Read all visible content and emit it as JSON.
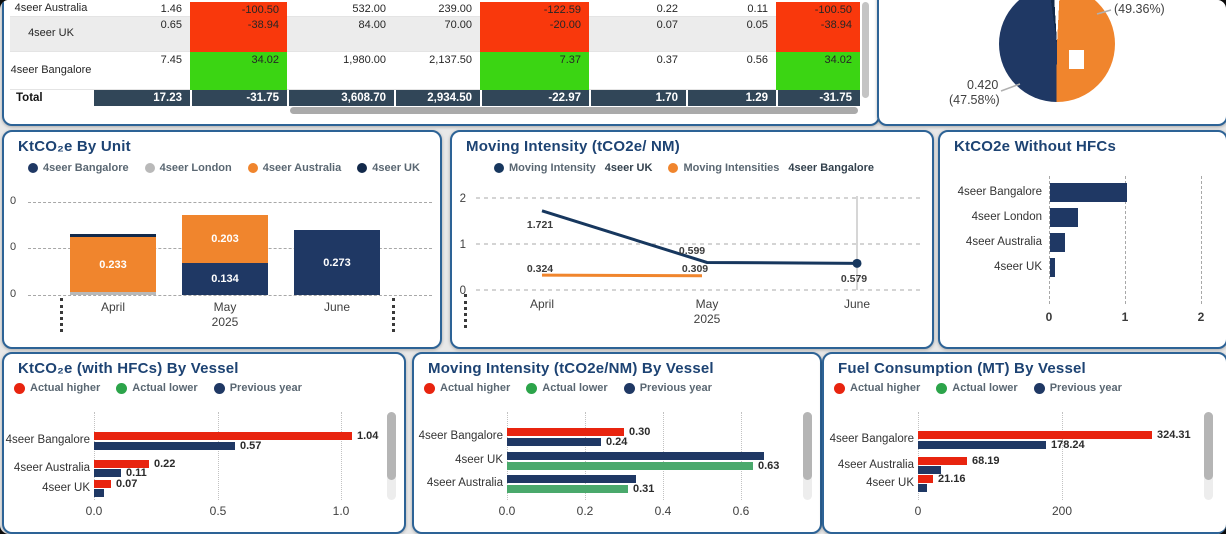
{
  "colors": {
    "navy": "#1f3864",
    "navy_dark": "#12294a",
    "line_navy": "#17375e",
    "orange": "#f0852d",
    "gray_series": "#b9b9b9",
    "red": "#e8240f",
    "legend_green": "#2ca44a",
    "green": "#4aa96c",
    "table_red": "#f9380c",
    "table_green": "#3bd513",
    "title": "#1d4373",
    "card_border": "#2d6396",
    "total_row_bg": "#314658"
  },
  "chart_data": [
    {
      "id": "emissions-summary-table",
      "type": "table",
      "rows": [
        {
          "label": "4seer Australia",
          "cells": [
            {
              "v": "1.46"
            },
            {
              "v": "-100.50",
              "c": "neg"
            },
            {
              "v": "532.00"
            },
            {
              "v": "239.00"
            },
            {
              "v": "-122.59",
              "c": "neg"
            },
            {
              "v": "0.22"
            },
            {
              "v": "0.11"
            },
            {
              "v": "-100.50",
              "c": "neg"
            }
          ]
        },
        {
          "label": "4seer UK",
          "cells": [
            {
              "v": "0.65"
            },
            {
              "v": "-38.94",
              "c": "neg"
            },
            {
              "v": "84.00"
            },
            {
              "v": "70.00"
            },
            {
              "v": "-20.00",
              "c": "neg"
            },
            {
              "v": "0.07"
            },
            {
              "v": "0.05"
            },
            {
              "v": "-38.94",
              "c": "neg"
            }
          ]
        },
        {
          "label": "4seer Bangalore",
          "cells": [
            {
              "v": "7.45"
            },
            {
              "v": "34.02",
              "c": "pos"
            },
            {
              "v": "1,980.00"
            },
            {
              "v": "2,137.50"
            },
            {
              "v": "7.37",
              "c": "pos"
            },
            {
              "v": "0.37"
            },
            {
              "v": "0.56"
            },
            {
              "v": "34.02",
              "c": "pos"
            }
          ]
        },
        {
          "label": "Total",
          "total": true,
          "cells": [
            {
              "v": "17.23"
            },
            {
              "v": "-31.75"
            },
            {
              "v": "3,608.70"
            },
            {
              "v": "2,934.50"
            },
            {
              "v": "-22.97"
            },
            {
              "v": "1.70"
            },
            {
              "v": "1.29"
            },
            {
              "v": "-31.75"
            }
          ]
        }
      ]
    },
    {
      "id": "emissions-share-pie",
      "type": "pie",
      "callout_top": "(49.36%)",
      "callout_bottom_value": "0.420",
      "callout_bottom_pct": "(47.58%)",
      "slices": [
        {
          "label": "(49.36%)",
          "value": 49.36,
          "color_key": "orange"
        },
        {
          "label": "0.420 (47.58%)",
          "value": 47.58,
          "color_key": "navy"
        },
        {
          "label": "",
          "value": 3.06,
          "color_key": "navy_dark"
        }
      ]
    },
    {
      "id": "ktco2e-by-unit",
      "type": "bar",
      "subtype": "stacked-column",
      "title": "KtCO₂e By Unit",
      "legend": [
        {
          "label": "4seer Bangalore",
          "color_key": "navy"
        },
        {
          "label": "4seer London",
          "color_key": "gray_series"
        },
        {
          "label": "4seer Australia",
          "color_key": "orange"
        },
        {
          "label": "4seer UK",
          "color_key": "navy_dark"
        }
      ],
      "categories": [
        "April",
        "May",
        "June"
      ],
      "x_sub_label": "2025",
      "y_tick_labels": [
        "0",
        "0",
        "0"
      ],
      "stacks": [
        {
          "category": "April",
          "segments_bottom_up": [
            {
              "series": "4seer London",
              "value": 0.012,
              "label": "",
              "color_key": "gray_series"
            },
            {
              "series": "4seer Australia",
              "value": 0.233,
              "label": "0.233",
              "color_key": "orange"
            },
            {
              "series": "4seer UK",
              "value": 0.014,
              "label": "",
              "color_key": "navy_dark"
            }
          ]
        },
        {
          "category": "May",
          "segments_bottom_up": [
            {
              "series": "4seer Bangalore",
              "value": 0.134,
              "label": "0.134",
              "color_key": "navy"
            },
            {
              "series": "4seer Australia",
              "value": 0.203,
              "label": "0.203",
              "color_key": "orange"
            }
          ]
        },
        {
          "category": "June",
          "segments_bottom_up": [
            {
              "series": "4seer Bangalore",
              "value": 0.273,
              "label": "0.273",
              "color_key": "navy"
            }
          ]
        }
      ]
    },
    {
      "id": "moving-intensity",
      "type": "line",
      "title": "Moving Intensity (tCO2e/ NM)",
      "legend": [
        {
          "label": "Moving Intensity",
          "bold": "4seer UK",
          "color_key": "line_navy"
        },
        {
          "label": "Moving Intensities",
          "bold": "4seer Bangalore",
          "color_key": "orange"
        }
      ],
      "x": [
        "April",
        "May",
        "June"
      ],
      "x_sub_label": "2025",
      "ylim": [
        0,
        2
      ],
      "y_tick_labels": [
        "2",
        "1",
        "0"
      ],
      "series": [
        {
          "name": "Moving Intensity 4seer UK",
          "color_key": "line_navy",
          "values": [
            1.721,
            0.599,
            0.579
          ],
          "labels": [
            "1.721",
            "0.599",
            "0.579"
          ]
        },
        {
          "name": "Moving Intensities 4seer Bangalore",
          "color_key": "orange",
          "values": [
            0.324,
            0.309,
            null
          ],
          "labels": [
            "0.324",
            "0.309",
            ""
          ]
        }
      ]
    },
    {
      "id": "ktco2e-without-hfcs",
      "type": "bar",
      "subtype": "horizontal",
      "title": "KtCO2e Without HFCs",
      "categories": [
        "4seer Bangalore",
        "4seer London",
        "4seer Australia",
        "4seer UK"
      ],
      "values": [
        1.01,
        0.37,
        0.2,
        0.07
      ],
      "xlim": [
        0,
        2
      ],
      "x_ticks": [
        "0",
        "1",
        "2"
      ]
    },
    {
      "id": "ktco2e-with-hfcs-by-vessel",
      "type": "bar",
      "subtype": "grouped-horizontal",
      "title": "KtCO₂e (with HFCs) By Vessel",
      "legend": [
        {
          "label": "Actual higher",
          "color_key": "red"
        },
        {
          "label": "Actual lower",
          "color_key": "legend_green"
        },
        {
          "label": "Previous year",
          "color_key": "navy"
        }
      ],
      "x_ticks": [
        "0.0",
        "0.5",
        "1.0"
      ],
      "groups": [
        {
          "category": "4seer Bangalore",
          "bars": [
            {
              "series": "Actual higher",
              "color_key": "red",
              "value": 1.04,
              "label": "1.04"
            },
            {
              "series": "Previous year",
              "color_key": "navy",
              "value": 0.57,
              "label": "0.57"
            }
          ]
        },
        {
          "category": "4seer Australia",
          "bars": [
            {
              "series": "Actual higher",
              "color_key": "red",
              "value": 0.22,
              "label": "0.22"
            },
            {
              "series": "Previous year",
              "color_key": "navy",
              "value": 0.11,
              "label": "0.11"
            }
          ]
        },
        {
          "category": "4seer UK",
          "bars": [
            {
              "series": "Actual higher",
              "color_key": "red",
              "value": 0.07,
              "label": "0.07"
            },
            {
              "series": "Previous year",
              "color_key": "navy",
              "value": 0.04,
              "label": ""
            }
          ]
        }
      ]
    },
    {
      "id": "moving-intensity-by-vessel",
      "type": "bar",
      "subtype": "grouped-horizontal",
      "title": "Moving Intensity (tCO2e/NM) By Vessel",
      "legend": [
        {
          "label": "Actual higher",
          "color_key": "red"
        },
        {
          "label": "Actual lower",
          "color_key": "legend_green"
        },
        {
          "label": "Previous year",
          "color_key": "navy"
        }
      ],
      "x_ticks": [
        "0.0",
        "0.2",
        "0.4",
        "0.6"
      ],
      "groups": [
        {
          "category": "4seer Bangalore",
          "bars": [
            {
              "series": "Actual higher",
              "color_key": "red",
              "value": 0.3,
              "label": "0.30"
            },
            {
              "series": "Previous year",
              "color_key": "navy",
              "value": 0.24,
              "label": "0.24"
            }
          ]
        },
        {
          "category": "4seer UK",
          "bars": [
            {
              "series": "Previous year",
              "color_key": "navy",
              "value": 0.66,
              "label": ""
            },
            {
              "series": "Actual lower",
              "color_key": "green",
              "value": 0.63,
              "label": "0.63"
            }
          ]
        },
        {
          "category": "4seer Australia",
          "bars": [
            {
              "series": "Previous year",
              "color_key": "navy",
              "value": 0.33,
              "label": ""
            },
            {
              "series": "Actual lower",
              "color_key": "green",
              "value": 0.31,
              "label": "0.31"
            }
          ]
        }
      ]
    },
    {
      "id": "fuel-consumption-by-vessel",
      "type": "bar",
      "subtype": "grouped-horizontal",
      "title": "Fuel Consumption (MT) By Vessel",
      "legend": [
        {
          "label": "Actual higher",
          "color_key": "red"
        },
        {
          "label": "Actual lower",
          "color_key": "legend_green"
        },
        {
          "label": "Previous year",
          "color_key": "navy"
        }
      ],
      "x_ticks": [
        "0",
        "200"
      ],
      "groups": [
        {
          "category": "4seer Bangalore",
          "bars": [
            {
              "series": "Actual higher",
              "color_key": "red",
              "value": 324.31,
              "label": "324.31"
            },
            {
              "series": "Previous year",
              "color_key": "navy",
              "value": 178.24,
              "label": "178.24"
            }
          ]
        },
        {
          "category": "4seer Australia",
          "bars": [
            {
              "series": "Actual higher",
              "color_key": "red",
              "value": 68.19,
              "label": "68.19"
            },
            {
              "series": "Previous year",
              "color_key": "navy",
              "value": 32,
              "label": ""
            }
          ]
        },
        {
          "category": "4seer UK",
          "bars": [
            {
              "series": "Actual higher",
              "color_key": "red",
              "value": 21.16,
              "label": "21.16"
            },
            {
              "series": "Previous year",
              "color_key": "navy",
              "value": 12,
              "label": ""
            }
          ]
        }
      ]
    }
  ]
}
